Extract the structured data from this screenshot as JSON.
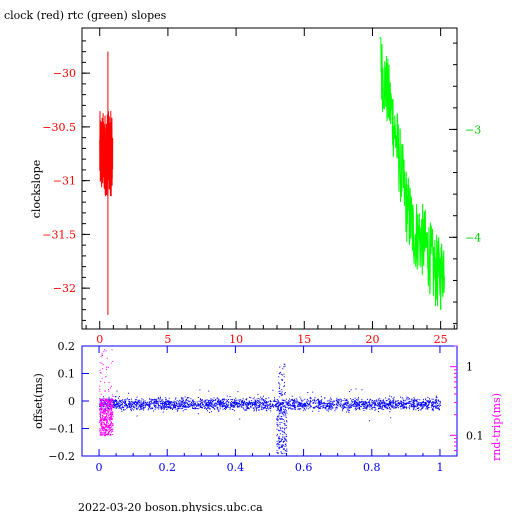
{
  "chart_data": [
    {
      "type": "line",
      "title": "clock (red) rtc (green) slopes",
      "ylabel": "clockslope",
      "xlim": [
        -1.3,
        26.2
      ],
      "ylim": [
        -32.38,
        -29.58
      ],
      "y2lim": [
        -4.85,
        -2.06
      ],
      "xticks": [
        0,
        5,
        10,
        15,
        20,
        25
      ],
      "yticks": [
        -30,
        -30.5,
        -31,
        -31.5,
        -32
      ],
      "y2ticks": [
        -3,
        -4
      ],
      "series": [
        {
          "color": "#ff0000",
          "axis": "left",
          "x_range": [
            0,
            0.95
          ],
          "y_band": [
            -31.15,
            -30.35
          ],
          "spike_low": -32.25,
          "spike_high": -29.8,
          "spike_x": 0.6
        },
        {
          "color": "#00ff00",
          "axis": "right",
          "x": [
            20.5,
            21.0,
            21.5,
            22.0,
            22.5,
            23.0,
            23.5,
            24.0,
            24.5,
            25.0,
            25.3
          ],
          "y": [
            -2.4,
            -2.6,
            -2.9,
            -3.3,
            -3.7,
            -3.95,
            -4.0,
            -4.1,
            -4.3,
            -4.35,
            -4.2
          ],
          "y_start": -2.15,
          "y_min": -4.8
        }
      ]
    },
    {
      "type": "scatter",
      "xlabel": "",
      "ylabel": "offset(ms)",
      "y2label": "rnd-trip(ms)",
      "xlim": [
        -0.05,
        1.05
      ],
      "ylim": [
        -0.2,
        0.2
      ],
      "y2lim_log": [
        0.05,
        2
      ],
      "xticks": [
        0,
        0.2,
        0.4,
        0.6,
        0.8,
        1
      ],
      "xticklabels": [
        "0",
        "0.2",
        "0.4",
        "0.6",
        "0.8",
        "1"
      ],
      "yticks": [
        -0.2,
        -0.1,
        0,
        0.1,
        0.2
      ],
      "yticklabels": [
        "−0.2",
        "−0.1",
        "0",
        "0.1",
        "0.2"
      ],
      "y2ticks": [
        1,
        0.1
      ],
      "y2ticklabels": [
        "1",
        "0.1"
      ],
      "series": [
        {
          "color": "#0000ff",
          "x_range": [
            0,
            1
          ],
          "y_center": -0.01,
          "y_spread": 0.015,
          "feature_x": 0.535,
          "feature_y_min": -0.19
        },
        {
          "color": "#ff00ff",
          "x_range": [
            0,
            0.04
          ],
          "y_range": [
            0.1,
            1.8
          ],
          "dense_range": [
            0.1,
            0.35
          ]
        }
      ]
    }
  ],
  "footer": "2022-03-20 boson.physics.ubc.ca"
}
